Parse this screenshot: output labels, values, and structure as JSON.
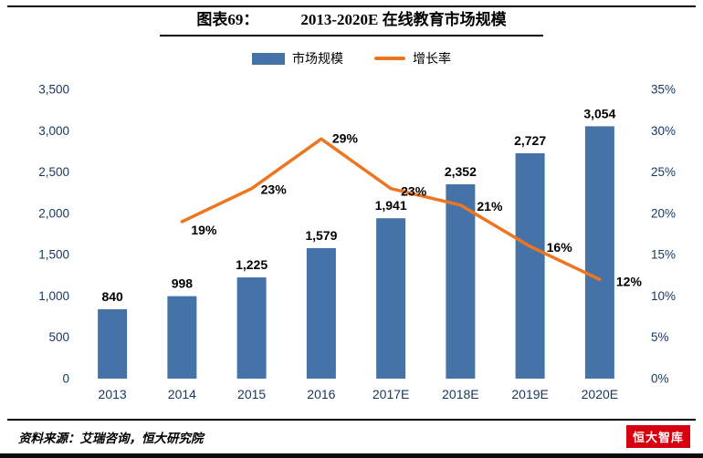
{
  "header": {
    "fig_label": "图表69：",
    "title": "2013-2020E 在线教育市场规模"
  },
  "footer": {
    "source": "资料来源：艾瑞咨询，恒大研究院",
    "logo_text": "恒大智库"
  },
  "colors": {
    "bar": "#4573a7",
    "line": "#ee7621",
    "axis_text": "#17375e",
    "label_text": "#000000",
    "logo_red": "#d7000f"
  },
  "chart_data": {
    "type": "bar",
    "subtype": "bar+line combo",
    "title": "2013-2020E 在线教育市场规模",
    "categories": [
      "2013",
      "2014",
      "2015",
      "2016",
      "2017E",
      "2018E",
      "2019E",
      "2020E"
    ],
    "series": [
      {
        "name": "市场规模",
        "type": "bar",
        "axis": "left",
        "values": [
          840,
          998,
          1225,
          1579,
          1941,
          2352,
          2727,
          3054
        ],
        "labels": [
          "840",
          "998",
          "1,225",
          "1,579",
          "1,941",
          "2,352",
          "2,727",
          "3,054"
        ]
      },
      {
        "name": "增长率",
        "type": "line",
        "axis": "right",
        "x_start_index": 1,
        "values": [
          19,
          23,
          29,
          23,
          21,
          16,
          12
        ],
        "labels": [
          "19%",
          "23%",
          "29%",
          "23%",
          "21%",
          "16%",
          "12%"
        ]
      }
    ],
    "left_axis": {
      "min": 0,
      "max": 3500,
      "tick_step": 500,
      "tick_labels": [
        "0",
        "500",
        "1,000",
        "1,500",
        "2,000",
        "2,500",
        "3,000",
        "3,500"
      ]
    },
    "right_axis": {
      "min": 0,
      "max": 35,
      "tick_step": 5,
      "tick_labels": [
        "0%",
        "5%",
        "10%",
        "15%",
        "20%",
        "25%",
        "30%",
        "35%"
      ]
    },
    "grid": false,
    "legend_position": "top"
  }
}
